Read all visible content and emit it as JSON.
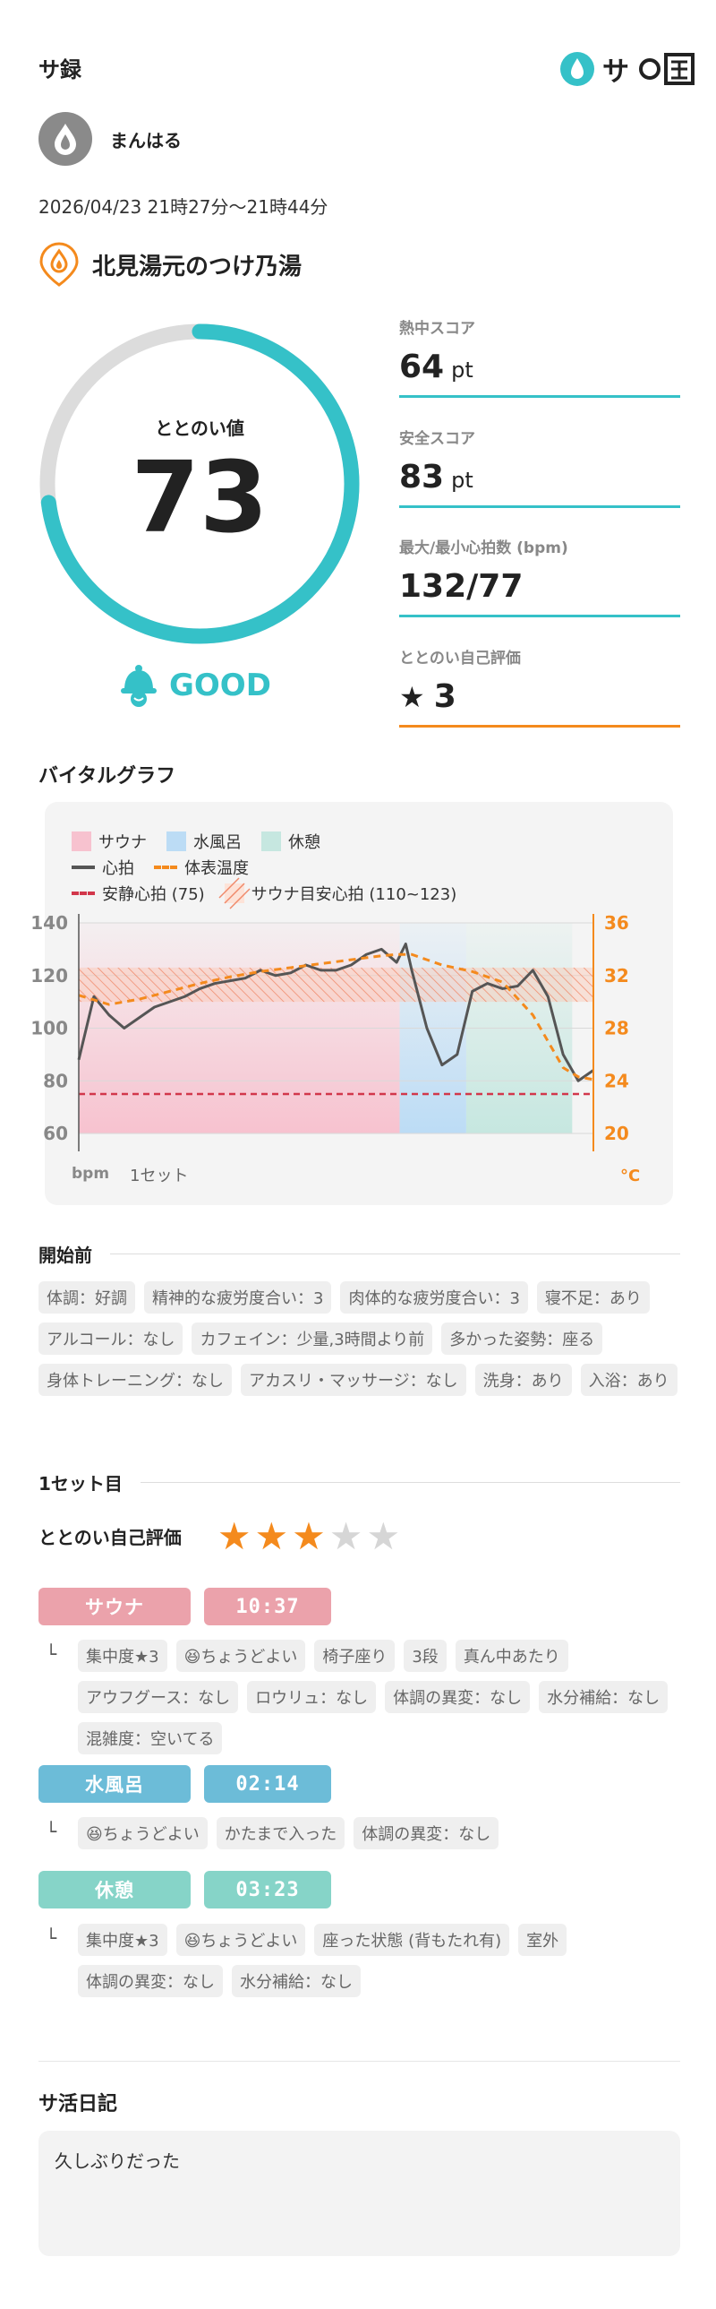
{
  "header": {
    "title": "サ録",
    "logo_text": "サ"
  },
  "user": {
    "name": "まんはる"
  },
  "session": {
    "datetime": "2026/04/23 21時27分〜21時44分",
    "facility": "北見湯元のつけ乃湯"
  },
  "totonoi": {
    "label": "ととのい値",
    "value": "73",
    "fraction": 0.73,
    "rating": "GOOD"
  },
  "stats": [
    {
      "label": "熱中スコア",
      "value": "64",
      "unit": "pt"
    },
    {
      "label": "安全スコア",
      "value": "83",
      "unit": "pt"
    },
    {
      "label": "最大/最小心拍数 (bpm)",
      "value": "132/77",
      "unit": ""
    },
    {
      "label": "ととのい自己評価",
      "value": "3",
      "unit": ""
    }
  ],
  "vital": {
    "title": "バイタルグラフ",
    "legend": {
      "sauna": "サウナ",
      "water": "水風呂",
      "rest": "休憩",
      "hr": "心拍",
      "skin": "体表温度",
      "resting": "安静心拍 (75)",
      "target": "サウナ目安心拍 (110~123)"
    },
    "left_ticks": [
      "140",
      "120",
      "100",
      "80",
      "60"
    ],
    "right_ticks": [
      "36",
      "32",
      "28",
      "24",
      "20"
    ],
    "left_unit": "bpm",
    "right_unit": "°C",
    "set_label": "1セット",
    "colors": {
      "sauna": "#f7c2cf",
      "water": "#bcdcf5",
      "rest": "#c6e7e0",
      "hr": "#555555",
      "skin": "#f48a1d",
      "resting": "#d2374b"
    }
  },
  "chart_data": {
    "type": "line",
    "series": [
      {
        "name": "心拍",
        "x": [
          0,
          0.5,
          1,
          1.5,
          2,
          2.5,
          3,
          3.5,
          4,
          4.5,
          5,
          5.5,
          6,
          6.5,
          7,
          7.5,
          8,
          8.5,
          9,
          9.5,
          10,
          10.5,
          10.8,
          11,
          11.5,
          12,
          12.5,
          13,
          13.5,
          14,
          14.5,
          15,
          15.5,
          16,
          16.5,
          17
        ],
        "values": [
          88,
          112,
          105,
          100,
          104,
          108,
          110,
          112,
          115,
          117,
          118,
          119,
          122,
          120,
          121,
          124,
          122,
          122,
          124,
          128,
          130,
          125,
          132,
          122,
          100,
          86,
          90,
          114,
          117,
          115,
          116,
          122,
          112,
          90,
          80,
          84
        ]
      },
      {
        "name": "体表温度",
        "x": [
          0,
          1,
          2,
          3,
          4,
          5,
          6,
          7,
          8,
          9,
          10,
          10.5,
          11,
          11.5,
          12,
          13,
          14,
          15,
          15.5,
          16,
          16.5,
          17
        ],
        "values": [
          30.5,
          29.8,
          30.2,
          30.8,
          31.4,
          31.9,
          32.3,
          32.6,
          32.9,
          33.2,
          33.5,
          33.6,
          33.6,
          33.2,
          32.8,
          32.3,
          31.5,
          29,
          27,
          25,
          24.3,
          24.1
        ]
      }
    ],
    "segments": [
      {
        "name": "サウナ",
        "start": 0,
        "end": 10.6
      },
      {
        "name": "水風呂",
        "start": 10.6,
        "end": 12.8
      },
      {
        "name": "休憩",
        "start": 12.8,
        "end": 16.3
      }
    ],
    "resting_hr": 75,
    "target_range": [
      110,
      123
    ],
    "ylim": [
      60,
      140
    ],
    "y2lim": [
      20,
      36
    ]
  },
  "before": {
    "title": "開始前",
    "tags": [
      "体調：好調",
      "精神的な疲労度合い：3",
      "肉体的な疲労度合い：3",
      "寝不足：あり",
      "アルコール：なし",
      "カフェイン：少量,3時間より前",
      "多かった姿勢：座る",
      "身体トレーニング：なし",
      "アカスリ・マッサージ：なし",
      "洗身：あり",
      "入浴：あり"
    ]
  },
  "set1": {
    "title": "1セット目",
    "rating_label": "ととのい自己評価",
    "rating": 3,
    "max_rating": 5,
    "sauna": {
      "label": "サウナ",
      "time": "10:37",
      "details": [
        "集中度★3",
        "😆ちょうどよい",
        "椅子座り",
        "3段",
        "真ん中あたり",
        "アウフグース：なし",
        "ロウリュ：なし",
        "体調の異変：なし",
        "水分補給：なし",
        "混雑度：空いてる"
      ]
    },
    "water": {
      "label": "水風呂",
      "time": "02:14",
      "details": [
        "😆ちょうどよい",
        "かたまで入った",
        "体調の異変：なし"
      ]
    },
    "rest": {
      "label": "休憩",
      "time": "03:23",
      "details": [
        "集中度★3",
        "😆ちょうどよい",
        "座った状態 (背もたれ有)",
        "室外",
        "体調の異変：なし",
        "水分補給：なし"
      ]
    }
  },
  "diary": {
    "title": "サ活日記",
    "text": "久しぶりだった"
  }
}
